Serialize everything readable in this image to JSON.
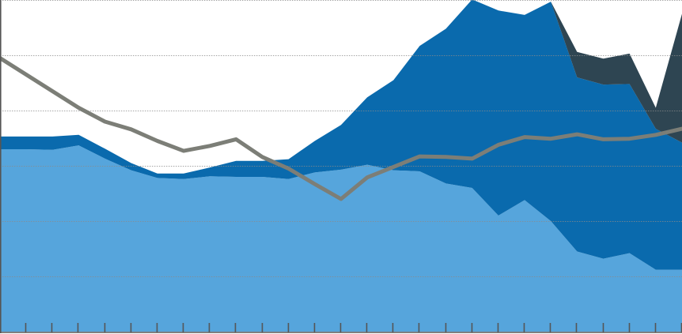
{
  "chart_data": {
    "type": "area",
    "title": "",
    "xlabel": "",
    "ylabel": "",
    "x": [
      0,
      1,
      2,
      3,
      4,
      5,
      6,
      7,
      8,
      9,
      10,
      11,
      12,
      13,
      14,
      15,
      16,
      17,
      18,
      19,
      20,
      21,
      22,
      23,
      24,
      25,
      26
    ],
    "ylim": [
      0,
      6
    ],
    "grid": true,
    "legend": "none",
    "series": [
      {
        "kind": "stacked-area",
        "color": "#56a5dc",
        "values": [
          3.3,
          3.3,
          3.29,
          3.37,
          3.13,
          2.92,
          2.78,
          2.76,
          2.81,
          2.8,
          2.8,
          2.76,
          2.88,
          2.93,
          3.02,
          2.92,
          2.9,
          2.68,
          2.6,
          2.1,
          2.38,
          2.0,
          1.45,
          1.32,
          1.42,
          1.12,
          1.12
        ]
      },
      {
        "kind": "stacked-area",
        "color": "#0a6aad",
        "values": [
          0.23,
          0.23,
          0.24,
          0.19,
          0.18,
          0.13,
          0.08,
          0.1,
          0.16,
          0.29,
          0.29,
          0.36,
          0.57,
          0.81,
          1.22,
          1.63,
          2.27,
          2.8,
          3.41,
          3.71,
          3.35,
          3.97,
          3.15,
          3.15,
          3.06,
          2.55,
          2.3
        ]
      },
      {
        "kind": "stacked-area",
        "color": "#2e4552",
        "values": [
          0,
          0,
          0,
          0,
          0,
          0,
          0,
          0,
          0,
          0,
          0,
          0,
          0,
          0,
          0,
          0,
          0,
          0,
          0,
          0,
          0,
          0,
          0.46,
          0.47,
          0.55,
          0.38,
          2.33
        ]
      },
      {
        "kind": "line",
        "color": "#7c7e77",
        "values": [
          4.95,
          4.65,
          4.35,
          4.05,
          3.8,
          3.66,
          3.45,
          3.27,
          3.36,
          3.48,
          3.16,
          2.95,
          2.67,
          2.4,
          2.79,
          2.98,
          3.17,
          3.16,
          3.13,
          3.38,
          3.52,
          3.49,
          3.57,
          3.48,
          3.49,
          3.56,
          3.67
        ]
      }
    ]
  }
}
